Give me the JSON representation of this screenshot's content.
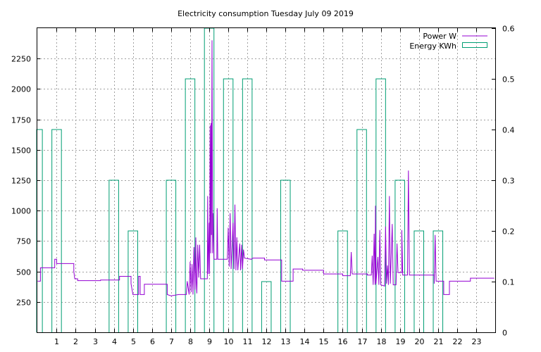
{
  "chart_data": {
    "type": "line",
    "title": "Electricity consumption Tuesday July 09 2019",
    "x_range": [
      -0.05,
      24
    ],
    "x_ticks": [
      1,
      2,
      3,
      4,
      5,
      6,
      7,
      8,
      9,
      10,
      11,
      12,
      13,
      14,
      15,
      16,
      17,
      18,
      19,
      20,
      21,
      22,
      23
    ],
    "y_left_range": [
      0,
      2500
    ],
    "y_left_ticks": [
      250,
      500,
      750,
      1000,
      1250,
      1500,
      1750,
      2000,
      2250
    ],
    "y_right_range": [
      0,
      0.6
    ],
    "y_right_ticks": [
      "0",
      "0.1",
      "0.2",
      "0.3",
      "0.4",
      "0.5",
      "0.6"
    ],
    "grid": true,
    "legend_position": "top-right",
    "colors": {
      "power": "#9400d3",
      "energy": "#009e73"
    },
    "series": [
      {
        "name": "Power W",
        "axis": "left",
        "style": "line",
        "points": [
          [
            0.0,
            420
          ],
          [
            0.15,
            420
          ],
          [
            0.15,
            530
          ],
          [
            0.9,
            530
          ],
          [
            0.9,
            600
          ],
          [
            1.0,
            600
          ],
          [
            1.0,
            565
          ],
          [
            1.9,
            565
          ],
          [
            1.9,
            500
          ],
          [
            1.95,
            440
          ],
          [
            2.1,
            440
          ],
          [
            2.1,
            425
          ],
          [
            3.3,
            425
          ],
          [
            3.3,
            430
          ],
          [
            4.3,
            430
          ],
          [
            4.3,
            460
          ],
          [
            4.9,
            460
          ],
          [
            4.9,
            400
          ],
          [
            5.0,
            310
          ],
          [
            5.3,
            310
          ],
          [
            5.3,
            460
          ],
          [
            5.38,
            460
          ],
          [
            5.38,
            310
          ],
          [
            5.6,
            310
          ],
          [
            5.6,
            395
          ],
          [
            6.8,
            395
          ],
          [
            6.8,
            310
          ],
          [
            7.0,
            300
          ],
          [
            7.4,
            310
          ],
          [
            7.8,
            310
          ],
          [
            7.85,
            420
          ],
          [
            7.95,
            310
          ],
          [
            8.0,
            580
          ],
          [
            8.05,
            330
          ],
          [
            8.1,
            560
          ],
          [
            8.15,
            310
          ],
          [
            8.2,
            700
          ],
          [
            8.25,
            350
          ],
          [
            8.3,
            780
          ],
          [
            8.32,
            420
          ],
          [
            8.35,
            320
          ],
          [
            8.4,
            720
          ],
          [
            8.45,
            450
          ],
          [
            8.5,
            720
          ],
          [
            8.55,
            440
          ],
          [
            8.9,
            440
          ],
          [
            8.92,
            1120
          ],
          [
            8.95,
            480
          ],
          [
            9.0,
            900
          ],
          [
            9.02,
            480
          ],
          [
            9.05,
            1700
          ],
          [
            9.08,
            650
          ],
          [
            9.1,
            1720
          ],
          [
            9.12,
            800
          ],
          [
            9.15,
            2400
          ],
          [
            9.18,
            650
          ],
          [
            9.2,
            980
          ],
          [
            9.25,
            600
          ],
          [
            9.4,
            600
          ],
          [
            9.42,
            1020
          ],
          [
            9.45,
            600
          ],
          [
            9.95,
            600
          ],
          [
            10.0,
            860
          ],
          [
            10.05,
            540
          ],
          [
            10.1,
            980
          ],
          [
            10.15,
            520
          ],
          [
            10.25,
            900
          ],
          [
            10.3,
            520
          ],
          [
            10.35,
            1050
          ],
          [
            10.4,
            510
          ],
          [
            10.45,
            780
          ],
          [
            10.5,
            510
          ],
          [
            10.6,
            730
          ],
          [
            10.65,
            510
          ],
          [
            10.7,
            720
          ],
          [
            10.75,
            520
          ],
          [
            10.8,
            680
          ],
          [
            10.85,
            610
          ],
          [
            11.2,
            600
          ],
          [
            11.3,
            610
          ],
          [
            11.9,
            610
          ],
          [
            11.9,
            595
          ],
          [
            12.8,
            595
          ],
          [
            12.8,
            420
          ],
          [
            13.4,
            420
          ],
          [
            13.4,
            520
          ],
          [
            13.9,
            520
          ],
          [
            13.9,
            510
          ],
          [
            15.0,
            510
          ],
          [
            15.0,
            480
          ],
          [
            16.0,
            480
          ],
          [
            16.0,
            465
          ],
          [
            16.4,
            465
          ],
          [
            16.45,
            660
          ],
          [
            16.5,
            480
          ],
          [
            17.3,
            480
          ],
          [
            17.3,
            470
          ],
          [
            17.5,
            470
          ],
          [
            17.55,
            630
          ],
          [
            17.6,
            390
          ],
          [
            17.65,
            810
          ],
          [
            17.7,
            390
          ],
          [
            17.72,
            1040
          ],
          [
            17.75,
            400
          ],
          [
            17.85,
            620
          ],
          [
            17.9,
            390
          ],
          [
            17.95,
            840
          ],
          [
            18.0,
            390
          ],
          [
            18.2,
            380
          ],
          [
            18.25,
            870
          ],
          [
            18.3,
            400
          ],
          [
            18.35,
            550
          ],
          [
            18.4,
            390
          ],
          [
            18.45,
            1120
          ],
          [
            18.5,
            400
          ],
          [
            18.6,
            890
          ],
          [
            18.65,
            390
          ],
          [
            18.8,
            390
          ],
          [
            18.85,
            730
          ],
          [
            18.9,
            490
          ],
          [
            19.1,
            490
          ],
          [
            19.1,
            840
          ],
          [
            19.15,
            470
          ],
          [
            19.4,
            470
          ],
          [
            19.45,
            1330
          ],
          [
            19.5,
            470
          ],
          [
            20.8,
            470
          ],
          [
            20.8,
            400
          ],
          [
            20.85,
            800
          ],
          [
            20.9,
            420
          ],
          [
            21.3,
            420
          ],
          [
            21.3,
            310
          ],
          [
            21.6,
            310
          ],
          [
            21.6,
            420
          ],
          [
            22.7,
            420
          ],
          [
            22.7,
            445
          ],
          [
            23.95,
            445
          ]
        ]
      },
      {
        "name": "Energy KWh",
        "axis": "right",
        "style": "bars",
        "width": 0.5,
        "categories": [
          "0",
          "1",
          "2",
          "3",
          "4",
          "5",
          "6",
          "7",
          "8",
          "9",
          "10",
          "11",
          "12",
          "13",
          "14",
          "15",
          "16",
          "17",
          "18",
          "19",
          "20",
          "21",
          "22",
          "23"
        ],
        "values": [
          0.4,
          0.4,
          0,
          0,
          0.3,
          0.2,
          0,
          0.3,
          0.5,
          0.6,
          0.5,
          0.5,
          0.1,
          0.3,
          0,
          0,
          0.2,
          0.4,
          0.5,
          0.3,
          0.2,
          0.2,
          0,
          0
        ]
      }
    ]
  }
}
